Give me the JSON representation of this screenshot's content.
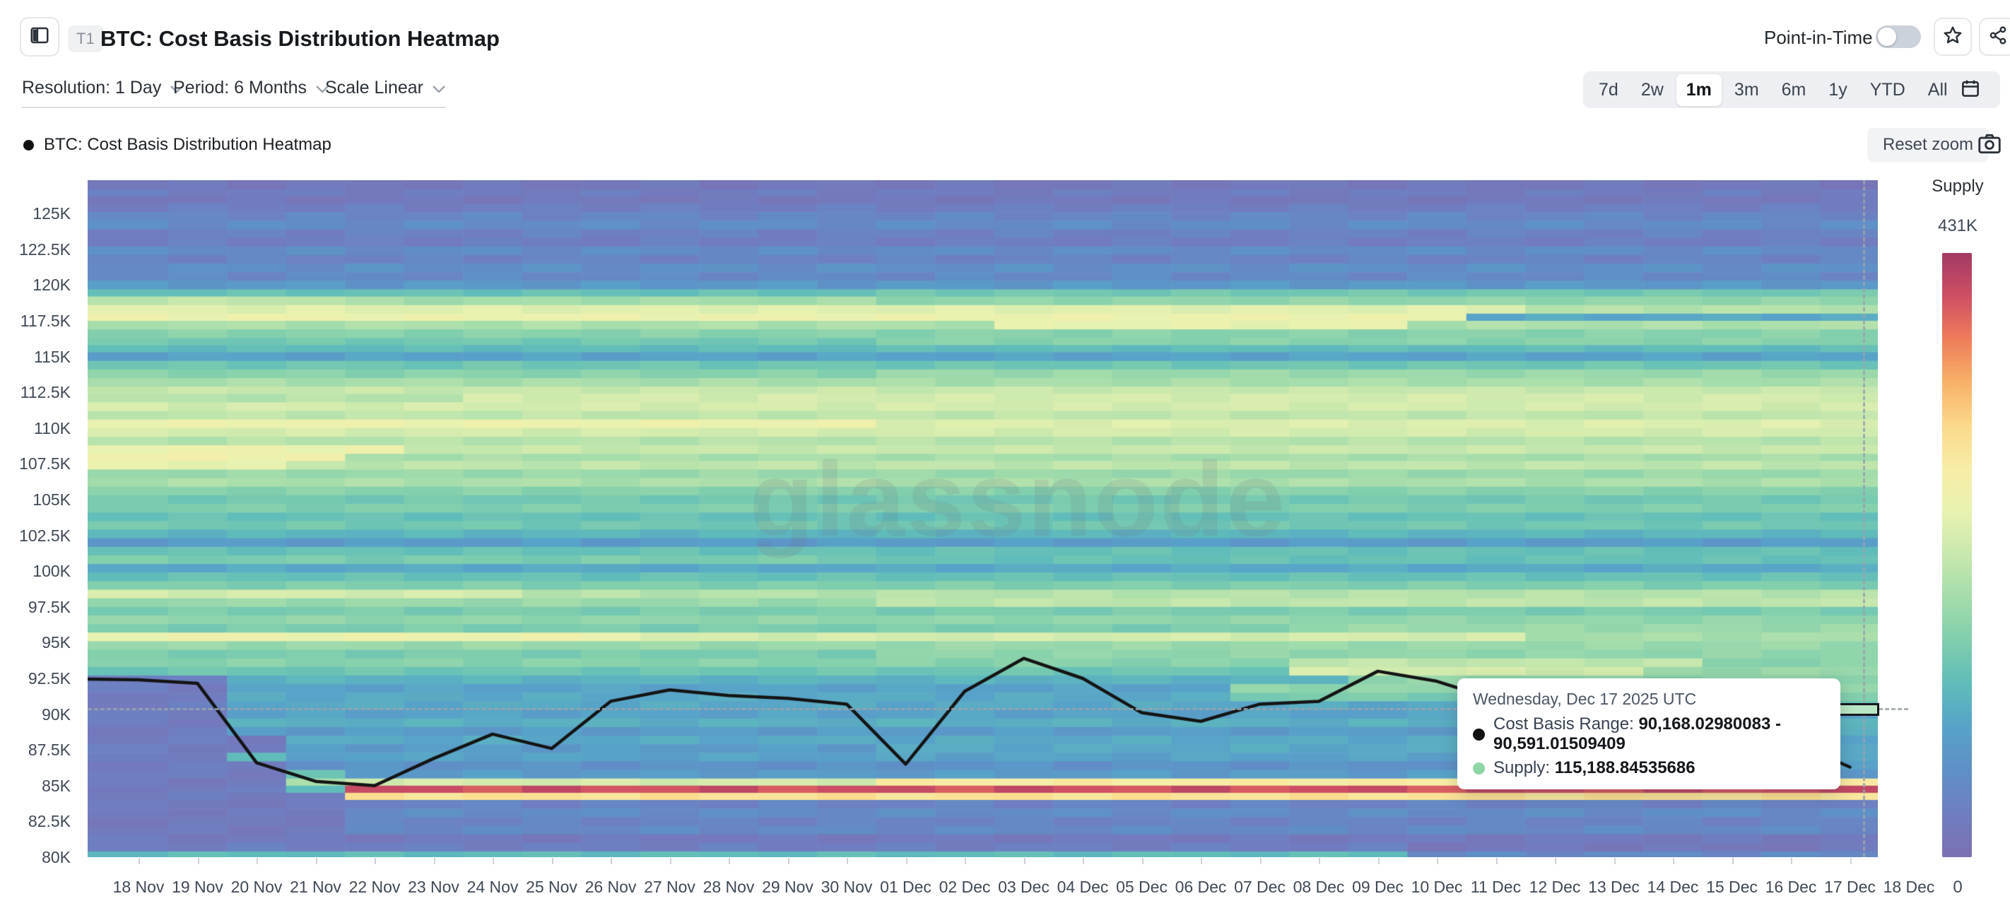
{
  "header": {
    "tag": "T1",
    "title": "BTC: Cost Basis Distribution Heatmap",
    "point_in_time_label": "Point-in-Time"
  },
  "controls": {
    "resolution_label": "Resolution: 1 Day",
    "period_label": "Period: 6 Months",
    "scale_label": "Scale Linear",
    "ranges": [
      "7d",
      "2w",
      "1m",
      "3m",
      "6m",
      "1y",
      "YTD",
      "All"
    ],
    "active_range": "1m"
  },
  "legend": {
    "series_label": "BTC: Cost Basis Distribution Heatmap",
    "reset_zoom_label": "Reset zoom"
  },
  "tooltip": {
    "date": "Wednesday, Dec 17 2025 UTC",
    "cost_basis_label": "Cost Basis Range:",
    "cost_basis_value": "90,168.02980083 - 90,591.01509409",
    "supply_label": "Supply:",
    "supply_value": "115,188.84535686"
  },
  "colorbar": {
    "title": "Supply",
    "max_label": "431K",
    "min_label": "0"
  },
  "watermark": "glassnode",
  "chart_data": {
    "type": "heatmap",
    "title": "BTC: Cost Basis Distribution Heatmap",
    "x_categories": [
      "18 Nov",
      "19 Nov",
      "20 Nov",
      "21 Nov",
      "22 Nov",
      "23 Nov",
      "24 Nov",
      "25 Nov",
      "26 Nov",
      "27 Nov",
      "28 Nov",
      "29 Nov",
      "30 Nov",
      "01 Dec",
      "02 Dec",
      "03 Dec",
      "04 Dec",
      "05 Dec",
      "06 Dec",
      "07 Dec",
      "08 Dec",
      "09 Dec",
      "10 Dec",
      "11 Dec",
      "12 Dec",
      "13 Dec",
      "14 Dec",
      "15 Dec",
      "16 Dec",
      "17 Dec",
      "18 Dec"
    ],
    "y_tick_labels": [
      "80K",
      "82.5K",
      "85K",
      "87.5K",
      "90K",
      "92.5K",
      "95K",
      "97.5K",
      "100K",
      "102.5K",
      "105K",
      "107.5K",
      "110K",
      "112.5K",
      "115K",
      "117.5K",
      "120K",
      "122.5K",
      "125K"
    ],
    "y_tick_values": [
      80,
      82.5,
      85,
      87.5,
      90,
      92.5,
      95,
      97.5,
      100,
      102.5,
      105,
      107.5,
      110,
      112.5,
      115,
      117.5,
      120,
      122.5,
      125
    ],
    "y_domain_k": [
      79.95,
      127.35
    ],
    "supply_max": 431000,
    "grid": false,
    "price_line": {
      "name": "BTC cost basis price line",
      "color": "#141414",
      "values_k": [
        92.4,
        92.15,
        86.6,
        85.3,
        85.0,
        86.9,
        88.6,
        87.6,
        90.9,
        91.7,
        91.3,
        91.1,
        90.7,
        86.5,
        91.6,
        93.9,
        92.5,
        90.1,
        89.5,
        90.7,
        90.9,
        93.0,
        92.3,
        91.0,
        89.8,
        89.2,
        88.1,
        86.6,
        88.1,
        86.3,
        null
      ]
    },
    "hover": {
      "day_index": 29,
      "price_low_k": 90.168,
      "price_high_k": 90.591,
      "supply": 115188.84535686,
      "cell_color": "#b9e6c4"
    },
    "palette_stops": [
      [
        0.0,
        "#7b70b3"
      ],
      [
        0.08,
        "#6f7ec1"
      ],
      [
        0.14,
        "#5f8fc7"
      ],
      [
        0.2,
        "#57a2c9"
      ],
      [
        0.28,
        "#5fbcba"
      ],
      [
        0.36,
        "#7fcead"
      ],
      [
        0.44,
        "#a3dcab"
      ],
      [
        0.52,
        "#c8e8ad"
      ],
      [
        0.6,
        "#e8f2b0"
      ],
      [
        0.68,
        "#f7eda6"
      ],
      [
        0.75,
        "#fbd98b"
      ],
      [
        0.82,
        "#f8b168"
      ],
      [
        0.89,
        "#ee7d5a"
      ],
      [
        0.95,
        "#cf4f64"
      ],
      [
        1.0,
        "#a23a64"
      ]
    ],
    "colorbar_colors_top_to_bottom": [
      "#a23a64",
      "#cf4f64",
      "#ee7d5a",
      "#f8b168",
      "#fbd98b",
      "#f7eda6",
      "#e8f2b0",
      "#c8e8ad",
      "#a3dcab",
      "#7fcead",
      "#5fbcba",
      "#57a2c9",
      "#5f8fc7",
      "#6f7ec1",
      "#7b70b3"
    ],
    "rows": [
      [
        127.4,
        126.7,
        0.05,
        null,
        null
      ],
      [
        126.7,
        126.2,
        0.07,
        null,
        null
      ],
      [
        126.2,
        125.7,
        0.05,
        null,
        null
      ],
      [
        125.7,
        125.1,
        0.08,
        null,
        null
      ],
      [
        125.1,
        124.5,
        0.11,
        null,
        null
      ],
      [
        124.5,
        123.9,
        0.13,
        null,
        null
      ],
      [
        123.9,
        123.3,
        0.09,
        null,
        null
      ],
      [
        123.3,
        122.7,
        0.08,
        null,
        null
      ],
      [
        122.7,
        122.1,
        0.13,
        null,
        null
      ],
      [
        122.1,
        121.5,
        0.1,
        null,
        null
      ],
      [
        121.5,
        120.9,
        0.14,
        null,
        null
      ],
      [
        120.9,
        120.3,
        0.12,
        null,
        null
      ],
      [
        120.3,
        119.7,
        0.17,
        null,
        null
      ],
      [
        119.7,
        119.2,
        0.3,
        [
          [
            13,
            30,
            0.33
          ]
        ],
        null
      ],
      [
        119.2,
        118.6,
        0.5,
        [
          [
            4,
            12,
            0.44
          ],
          [
            13,
            30,
            0.4
          ]
        ],
        null
      ],
      [
        118.6,
        118.0,
        0.58,
        [
          [
            24,
            30,
            0.48
          ]
        ],
        null
      ],
      [
        118.0,
        117.5,
        0.62,
        [
          [
            23,
            30,
            0.22
          ]
        ],
        null
      ],
      [
        117.5,
        116.9,
        0.46,
        [
          [
            15,
            21,
            0.6
          ]
        ],
        null
      ],
      [
        116.9,
        116.3,
        0.38,
        null,
        null
      ],
      [
        116.3,
        115.8,
        0.33,
        [
          [
            13,
            30,
            0.38
          ]
        ],
        null
      ],
      [
        115.8,
        115.3,
        0.28,
        null,
        null
      ],
      [
        115.3,
        114.7,
        0.2,
        null,
        null
      ],
      [
        114.7,
        114.1,
        0.32,
        null,
        null
      ],
      [
        114.1,
        113.5,
        0.38,
        [
          [
            13,
            30,
            0.42
          ]
        ],
        null
      ],
      [
        113.5,
        112.9,
        0.45,
        null,
        null
      ],
      [
        112.9,
        112.4,
        0.52,
        null,
        null
      ],
      [
        112.4,
        111.8,
        0.48,
        [
          [
            6,
            30,
            0.55
          ]
        ],
        null
      ],
      [
        111.8,
        111.2,
        0.55,
        null,
        null
      ],
      [
        111.2,
        110.6,
        0.5,
        null,
        null
      ],
      [
        110.6,
        110.0,
        0.62,
        [
          [
            13,
            30,
            0.57
          ]
        ],
        null
      ],
      [
        110.0,
        109.4,
        0.55,
        null,
        null
      ],
      [
        109.4,
        108.8,
        0.48,
        null,
        null
      ],
      [
        108.8,
        108.2,
        0.52,
        [
          [
            0,
            4,
            0.62
          ]
        ],
        null
      ],
      [
        108.2,
        107.7,
        0.45,
        [
          [
            0,
            3,
            0.64
          ]
        ],
        null
      ],
      [
        107.7,
        107.1,
        0.5,
        [
          [
            0,
            2,
            0.6
          ]
        ],
        null
      ],
      [
        107.1,
        106.5,
        0.42,
        null,
        null
      ],
      [
        106.5,
        105.9,
        0.46,
        null,
        null
      ],
      [
        105.9,
        105.3,
        0.38,
        null,
        null
      ],
      [
        105.3,
        104.7,
        0.33,
        null,
        null
      ],
      [
        104.7,
        104.1,
        0.36,
        null,
        null
      ],
      [
        104.1,
        103.5,
        0.3,
        null,
        null
      ],
      [
        103.5,
        102.9,
        0.33,
        null,
        null
      ],
      [
        102.9,
        102.3,
        0.26,
        null,
        null
      ],
      [
        102.3,
        101.7,
        0.18,
        null,
        null
      ],
      [
        101.7,
        101.1,
        0.3,
        null,
        null
      ],
      [
        101.1,
        100.5,
        0.35,
        [
          [
            13,
            30,
            0.3
          ]
        ],
        null
      ],
      [
        100.5,
        99.9,
        0.22,
        null,
        null
      ],
      [
        99.9,
        99.3,
        0.3,
        null,
        null
      ],
      [
        99.3,
        98.7,
        0.36,
        null,
        null
      ],
      [
        98.7,
        98.1,
        0.48,
        [
          [
            0,
            6,
            0.55
          ]
        ],
        null
      ],
      [
        98.1,
        97.5,
        0.42,
        [
          [
            13,
            30,
            0.5
          ]
        ],
        null
      ],
      [
        97.5,
        96.9,
        0.35,
        null,
        null
      ],
      [
        96.9,
        96.3,
        0.4,
        null,
        null
      ],
      [
        96.3,
        95.7,
        0.35,
        [
          [
            20,
            30,
            0.42
          ]
        ],
        null
      ],
      [
        95.7,
        95.1,
        0.55,
        [
          [
            0,
            8,
            0.62
          ],
          [
            24,
            30,
            0.45
          ]
        ],
        null
      ],
      [
        95.1,
        94.5,
        0.42,
        null,
        null
      ],
      [
        94.5,
        93.9,
        0.35,
        [
          [
            13,
            30,
            0.4
          ]
        ],
        null
      ],
      [
        93.9,
        93.3,
        0.38,
        [
          [
            20,
            26,
            0.5
          ]
        ],
        null
      ],
      [
        93.3,
        92.7,
        0.32,
        [
          [
            20,
            25,
            0.55
          ],
          [
            26,
            30,
            0.42
          ]
        ],
        null
      ],
      [
        92.7,
        92.1,
        0.25,
        [
          [
            21,
            30,
            0.4
          ]
        ],
        [
          2,
          0.08
        ]
      ],
      [
        92.1,
        91.5,
        0.2,
        [
          [
            19,
            30,
            0.4
          ]
        ],
        [
          2,
          0.07
        ]
      ],
      [
        91.5,
        90.9,
        0.22,
        [
          [
            19,
            30,
            0.35
          ]
        ],
        [
          2,
          0.07
        ]
      ],
      [
        90.9,
        90.3,
        0.22,
        [
          [
            26,
            30,
            0.32
          ]
        ],
        [
          2,
          0.07
        ]
      ],
      [
        90.3,
        89.7,
        0.2,
        null,
        [
          2,
          0.07
        ]
      ],
      [
        89.7,
        89.1,
        0.24,
        null,
        [
          2,
          0.07
        ]
      ],
      [
        89.1,
        88.5,
        0.18,
        [
          [
            23,
            30,
            0.24
          ]
        ],
        [
          2,
          0.07
        ]
      ],
      [
        88.5,
        87.9,
        0.22,
        null,
        [
          3,
          0.07
        ]
      ],
      [
        87.9,
        87.3,
        0.18,
        [
          [
            13,
            30,
            0.22
          ]
        ],
        [
          3,
          0.07
        ]
      ],
      [
        87.3,
        86.7,
        0.2,
        [
          [
            2,
            2,
            0.26
          ]
        ],
        [
          2,
          0.08
        ]
      ],
      [
        86.7,
        86.1,
        0.15,
        [
          [
            24,
            30,
            0.2
          ]
        ],
        [
          3,
          0.07
        ]
      ],
      [
        86.1,
        85.5,
        0.18,
        [
          [
            3,
            3,
            0.3
          ]
        ],
        [
          3,
          0.07
        ]
      ],
      [
        85.5,
        85.0,
        0.25,
        [
          [
            3,
            3,
            0.45
          ],
          [
            4,
            12,
            0.55
          ],
          [
            13,
            30,
            0.68
          ]
        ],
        [
          3,
          0.06
        ]
      ],
      [
        85.0,
        84.5,
        0.1,
        [
          [
            3,
            3,
            0.3
          ],
          [
            4,
            30,
            0.95
          ]
        ],
        [
          3,
          0.07
        ]
      ],
      [
        84.5,
        84.0,
        0.1,
        [
          [
            4,
            30,
            0.72
          ]
        ],
        [
          4,
          0.07
        ]
      ],
      [
        84.0,
        83.4,
        0.1,
        null,
        [
          4,
          0.06
        ]
      ],
      [
        83.4,
        82.8,
        0.13,
        null,
        [
          4,
          0.06
        ]
      ],
      [
        82.8,
        82.2,
        0.1,
        null,
        [
          4,
          0.06
        ]
      ],
      [
        82.2,
        81.6,
        0.12,
        null,
        [
          4,
          0.06
        ]
      ],
      [
        81.6,
        81.0,
        0.06,
        null,
        null
      ],
      [
        81.0,
        80.4,
        0.08,
        [
          [
            22,
            30,
            0.05
          ]
        ],
        null
      ],
      [
        80.4,
        79.95,
        0.28,
        [
          [
            22,
            30,
            0.12
          ]
        ],
        null
      ]
    ]
  }
}
